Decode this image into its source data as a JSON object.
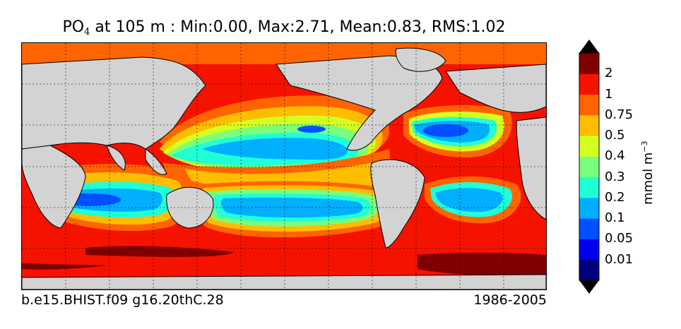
{
  "title": {
    "variable": "PO",
    "subscript": "4",
    "rest": "  at 105 m : Min:0.00, Max:2.71, Mean:0.83, RMS:1.02"
  },
  "case_name": "b.e15.BHIST.f09 g16.20thC.28",
  "period": "1986-2005",
  "colorbar": {
    "unit_text": "mmol m",
    "unit_exp": "−3",
    "ticks": [
      "0.01",
      "0.05",
      "0.1",
      "0.2",
      "0.3",
      "0.4",
      "0.5",
      "0.75",
      "1",
      "2"
    ],
    "colors": [
      "#00007f",
      "#0000ef",
      "#0050ff",
      "#00afff",
      "#20ffd6",
      "#7aff7d",
      "#d4ff22",
      "#ffbd00",
      "#ff6400",
      "#f51300",
      "#800000"
    ],
    "extend": "both"
  },
  "colors": {
    "land": "#d3d3d3",
    "grid": "#000000"
  }
}
